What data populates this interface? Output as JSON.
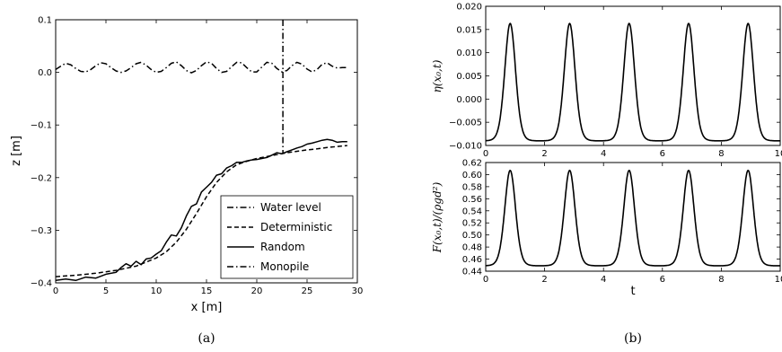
{
  "chart_data": [
    {
      "type": "line",
      "xlabel": "x [m]",
      "ylabel": "z [m]",
      "caption": "(a)",
      "xlim": [
        0,
        30
      ],
      "ylim": [
        -0.45,
        0.1
      ],
      "xticks": [
        "0",
        "5",
        "10",
        "15",
        "20",
        "25",
        "30"
      ],
      "yticks": [
        "0.1",
        "0.0",
        "−0.1",
        "−0.2",
        "−0.3",
        "−0.4"
      ],
      "legend_position": "bottom-right",
      "series": [
        {
          "name": "Water level",
          "style": "dashdot",
          "x": [
            0,
            0.5,
            1.0,
            1.5,
            2.0,
            2.5,
            3.0,
            3.5,
            4.0,
            4.5,
            5.0,
            5.5,
            6.0,
            6.5,
            7.0,
            7.5,
            8.0,
            8.5,
            9.0,
            9.5,
            10.0,
            10.5,
            11.0,
            11.5,
            12.0,
            12.5,
            13.0,
            13.5,
            14.0,
            14.5,
            15.0,
            15.5,
            16.0,
            16.5,
            17.0,
            17.5,
            18.0,
            18.5,
            19.0,
            19.5,
            20.0,
            20.5,
            21.0,
            21.5,
            22.0,
            22.5,
            23.0,
            23.5,
            24.0,
            24.5,
            25.0,
            25.5,
            26.0,
            26.5,
            27.0,
            27.5,
            28.0,
            28.5,
            29.0
          ],
          "y": [
            -0.004,
            0.003,
            0.009,
            0.006,
            -0.002,
            -0.008,
            -0.009,
            -0.004,
            0.004,
            0.01,
            0.008,
            0.0,
            -0.007,
            -0.01,
            -0.007,
            0.0,
            0.008,
            0.011,
            0.005,
            -0.004,
            -0.01,
            -0.008,
            0.0,
            0.009,
            0.012,
            0.004,
            -0.006,
            -0.011,
            -0.006,
            0.004,
            0.012,
            0.009,
            -0.002,
            -0.01,
            -0.008,
            0.002,
            0.011,
            0.01,
            0.0,
            -0.009,
            -0.009,
            0.001,
            0.011,
            0.009,
            -0.002,
            -0.009,
            -0.006,
            0.004,
            0.011,
            0.007,
            -0.003,
            -0.009,
            -0.004,
            0.007,
            0.01,
            0.003,
            -0.001,
            0.0,
            0.0
          ]
        },
        {
          "name": "Deterministic",
          "style": "dashed",
          "x": [
            0,
            2,
            4,
            6,
            8,
            10,
            11,
            12,
            13,
            14,
            15,
            16,
            17,
            18,
            19,
            20,
            21,
            22,
            23,
            24,
            25,
            26,
            27,
            28,
            29
          ],
          "y": [
            -0.437,
            -0.434,
            -0.43,
            -0.424,
            -0.415,
            -0.398,
            -0.385,
            -0.365,
            -0.338,
            -0.305,
            -0.27,
            -0.24,
            -0.218,
            -0.203,
            -0.196,
            -0.19,
            -0.186,
            -0.182,
            -0.178,
            -0.175,
            -0.172,
            -0.17,
            -0.167,
            -0.165,
            -0.163
          ]
        },
        {
          "name": "Random",
          "style": "solid",
          "x": [
            0,
            1,
            2,
            3,
            4,
            5,
            6,
            6.5,
            7,
            7.5,
            8,
            8.5,
            9,
            9.5,
            10,
            10.5,
            11,
            11.5,
            12,
            12.5,
            13,
            13.5,
            14,
            14.5,
            15,
            15.5,
            16,
            16.5,
            17,
            17.5,
            18,
            18.5,
            19,
            19.5,
            20,
            20.5,
            21,
            21.5,
            22,
            22.5,
            23,
            23.5,
            24,
            24.5,
            25,
            25.5,
            26,
            26.5,
            27,
            27.5,
            28,
            28.5,
            29
          ],
          "y": [
            -0.445,
            -0.442,
            -0.445,
            -0.438,
            -0.44,
            -0.432,
            -0.428,
            -0.418,
            -0.41,
            -0.415,
            -0.405,
            -0.412,
            -0.4,
            -0.398,
            -0.39,
            -0.383,
            -0.365,
            -0.35,
            -0.352,
            -0.335,
            -0.31,
            -0.29,
            -0.285,
            -0.26,
            -0.25,
            -0.24,
            -0.225,
            -0.222,
            -0.21,
            -0.205,
            -0.198,
            -0.198,
            -0.195,
            -0.193,
            -0.192,
            -0.19,
            -0.188,
            -0.183,
            -0.178,
            -0.18,
            -0.176,
            -0.172,
            -0.168,
            -0.165,
            -0.16,
            -0.158,
            -0.155,
            -0.152,
            -0.15,
            -0.152,
            -0.156,
            -0.155,
            -0.155
          ]
        },
        {
          "name": "Monopile",
          "style": "dashdot",
          "x": [
            22.6,
            22.6
          ],
          "y": [
            0.1,
            -0.178
          ]
        }
      ]
    },
    {
      "type": "line",
      "xlabel": "",
      "ylabel": "η(x₀,t)",
      "caption": "(b)",
      "xlim": [
        0,
        10
      ],
      "ylim": [
        -0.01,
        0.02
      ],
      "xticks": [
        "0",
        "2",
        "4",
        "6",
        "8",
        "10"
      ],
      "yticks": [
        "0.020",
        "0.015",
        "0.010",
        "0.005",
        "0.000",
        "−0.005",
        "−0.010"
      ],
      "series": [
        {
          "style": "solid",
          "period": 2.02,
          "peak_time": 0.83,
          "peak_value": 0.0163,
          "trough_value": -0.009
        }
      ]
    },
    {
      "type": "line",
      "xlabel": "t",
      "ylabel": "F(x₀,t)/(ρgd²)",
      "xlim": [
        0,
        10
      ],
      "ylim": [
        0.44,
        0.62
      ],
      "xticks": [
        "0",
        "2",
        "4",
        "6",
        "8",
        "10"
      ],
      "yticks": [
        "0.62",
        "0.60",
        "0.58",
        "0.56",
        "0.54",
        "0.52",
        "0.50",
        "0.48",
        "0.46",
        "0.44"
      ],
      "series": [
        {
          "style": "solid",
          "period": 2.02,
          "peak_time": 0.83,
          "peak_value": 0.607,
          "trough_value": 0.449
        }
      ]
    }
  ]
}
